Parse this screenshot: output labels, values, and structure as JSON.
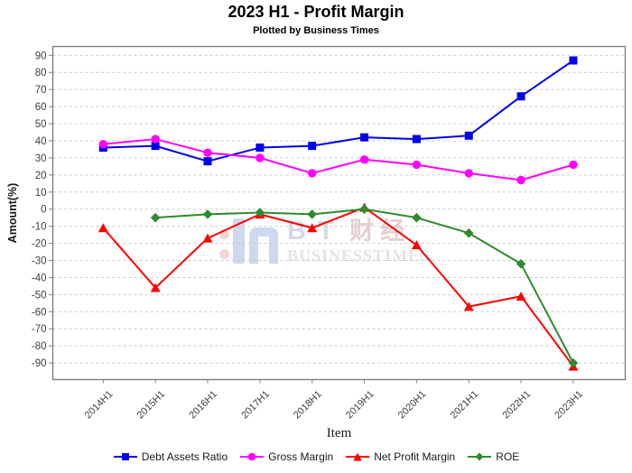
{
  "title": "2023 H1 - Profit Margin",
  "subtitle": "Plotted by Business Times",
  "axes": {
    "y_label": "Amount(%)",
    "x_label": "Item"
  },
  "watermark": {
    "bt": "BT",
    "cn": "财经",
    "line2": "BUSINESSTIMES"
  },
  "chart_data": {
    "type": "line",
    "title": "2023 H1 - Profit Margin",
    "subtitle": "Plotted by Business Times",
    "xlabel": "Item",
    "ylabel": "Amount(%)",
    "categories": [
      "2014H1",
      "2015H1",
      "2016H1",
      "2017H1",
      "2018H1",
      "2019H1",
      "2020H1",
      "2021H1",
      "2022H1",
      "2023H1"
    ],
    "series": [
      {
        "name": "Debt Assets Ratio",
        "marker": "square",
        "color": "#0000ee",
        "values": [
          36,
          37,
          28,
          36,
          37,
          42,
          41,
          43,
          66,
          87
        ]
      },
      {
        "name": "Gross Margin",
        "marker": "circle",
        "color": "#ff00ff",
        "values": [
          38,
          41,
          33,
          30,
          21,
          29,
          26,
          21,
          17,
          26
        ]
      },
      {
        "name": "Net Profit Margin",
        "marker": "triangle",
        "color": "#ff0000",
        "values": [
          -11,
          -46,
          -17,
          -3,
          -11,
          1,
          -21,
          -57,
          -51,
          -92
        ]
      },
      {
        "name": "ROE",
        "marker": "diamond",
        "color": "#2e8b2e",
        "values": [
          null,
          -5,
          -3,
          -2,
          -3,
          0,
          -5,
          -14,
          -32,
          -90
        ]
      }
    ],
    "ylim": [
      -90,
      90
    ],
    "y_tick_interval": 10,
    "grid": "horizontal-dashed",
    "legend_position": "bottom",
    "x_tick_rotation": -45
  },
  "style": {
    "grid_color": "#cacaca",
    "axis_color": "#7f7f7f",
    "tick_label_color": "#3f3f3f"
  }
}
